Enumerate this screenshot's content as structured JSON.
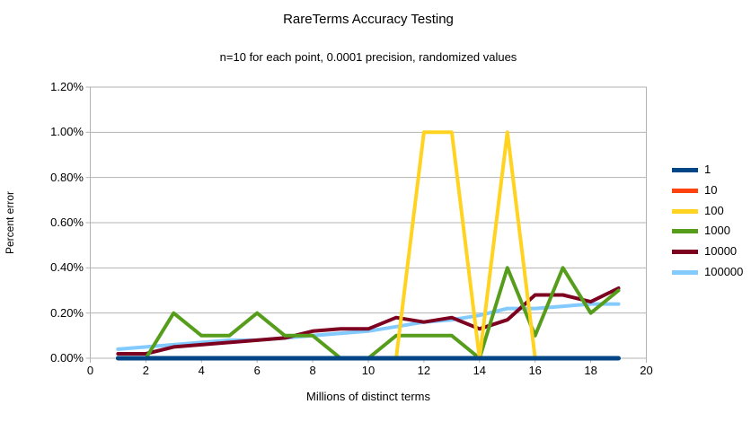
{
  "chart_data": {
    "type": "line",
    "title": "RareTerms Accuracy Testing",
    "subtitle": "n=10 for each point, 0.0001 precision, randomized values",
    "xlabel": "Millions of distinct terms",
    "ylabel": "Percent error",
    "xlim": [
      0,
      20
    ],
    "ylim_percent": [
      0,
      1.2
    ],
    "x_ticks": [
      0,
      2,
      4,
      6,
      8,
      10,
      12,
      14,
      16,
      18,
      20
    ],
    "y_tick_labels": [
      "0.00%",
      "0.20%",
      "0.40%",
      "0.60%",
      "0.80%",
      "1.00%",
      "1.20%"
    ],
    "grid": "horizontal-only",
    "grid_color": "#b3b3b3",
    "legend_position": "right",
    "x": [
      1,
      2,
      3,
      4,
      5,
      6,
      7,
      8,
      9,
      10,
      11,
      12,
      13,
      14,
      15,
      16,
      17,
      18,
      19
    ],
    "series": [
      {
        "name": "1",
        "color": "#004586",
        "values": [
          0,
          0,
          0,
          0,
          0,
          0,
          0,
          0,
          0,
          0,
          0,
          0,
          0,
          0,
          0,
          0,
          0,
          0,
          0
        ]
      },
      {
        "name": "10",
        "color": "#FF420E",
        "values": [
          0,
          0,
          0,
          0,
          0,
          0,
          0,
          0,
          0,
          0,
          0,
          0,
          0,
          0,
          0,
          0,
          0,
          0,
          0
        ]
      },
      {
        "name": "100",
        "color": "#FFD320",
        "values": [
          0,
          0,
          0,
          0,
          0,
          0,
          0,
          0,
          0,
          0,
          0,
          1.0,
          1.0,
          0,
          1.0,
          0,
          0,
          0,
          0
        ]
      },
      {
        "name": "1000",
        "color": "#579D1C",
        "values": [
          0,
          0,
          0.2,
          0.1,
          0.1,
          0.2,
          0.1,
          0.1,
          0,
          0,
          0.1,
          0.1,
          0.1,
          0,
          0.4,
          0.1,
          0.4,
          0.2,
          0.3
        ]
      },
      {
        "name": "10000",
        "color": "#7E0021",
        "values": [
          0.02,
          0.02,
          0.05,
          0.06,
          0.07,
          0.08,
          0.09,
          0.12,
          0.13,
          0.13,
          0.18,
          0.16,
          0.18,
          0.13,
          0.17,
          0.28,
          0.28,
          0.25,
          0.31
        ]
      },
      {
        "name": "100000",
        "color": "#83CAFF",
        "values": [
          0.04,
          0.05,
          0.06,
          0.07,
          0.08,
          0.08,
          0.09,
          0.1,
          0.11,
          0.12,
          0.14,
          0.16,
          0.17,
          0.19,
          0.22,
          0.22,
          0.23,
          0.24,
          0.24
        ]
      }
    ],
    "draw_order": [
      "10",
      "100000",
      "10000",
      "1000",
      "100",
      "1"
    ],
    "values_unit": "percent"
  }
}
